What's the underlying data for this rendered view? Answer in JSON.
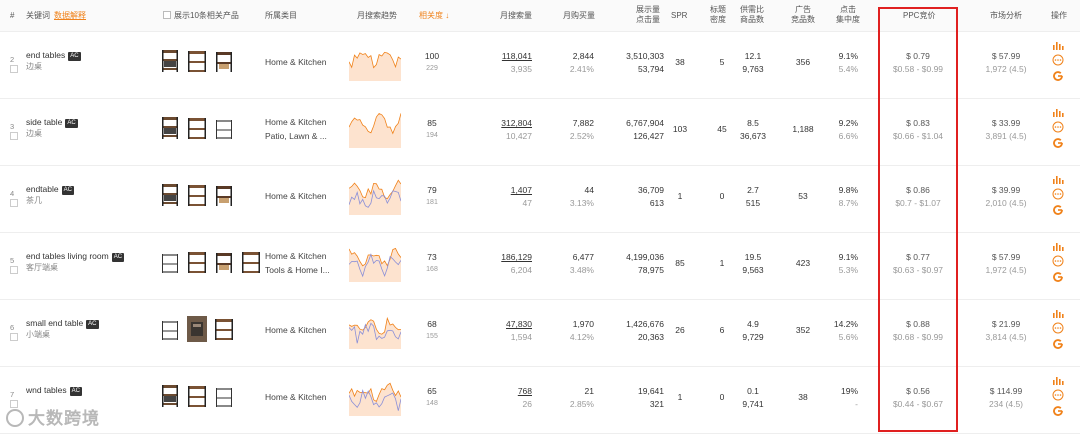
{
  "header": {
    "idx": "#",
    "keyword": "关键词",
    "keyword_link": "数据解释",
    "show_products": "展示10条相关产品",
    "category": "所属类目",
    "trend": "月搜索趋势",
    "relevance": "相关度",
    "monthly_search": "月搜索量",
    "monthly_buy": "月购买量",
    "impressions_1": "展示量",
    "impressions_2": "点击量",
    "spr": "SPR",
    "title_density_1": "标题",
    "title_density_2": "密度",
    "supply_demand_1": "供需比",
    "supply_demand_2": "商品数",
    "ads_1": "广告",
    "ads_2": "竞品数",
    "click_conc_1": "点击",
    "click_conc_2": "集中度",
    "ppc": "PPC竞价",
    "market": "市场分析",
    "ops": "操作"
  },
  "ac_label": "AC",
  "rows": [
    {
      "idx": "2",
      "keyword": "end tables",
      "keyword_cn": "边桌",
      "category": [
        "Home & Kitchen"
      ],
      "relevance": "100",
      "relevance_sub": "229",
      "search": "118,041",
      "search_sub": "3,935",
      "buy": "2,844",
      "buy_sub": "2.41%",
      "impressions": "3,510,303",
      "clicks": "53,794",
      "spr": "38",
      "title_density": "5",
      "supply_demand": "12.1",
      "products": "9,763",
      "ads": "356",
      "click_conc": "9.1%",
      "click_conc_sub": "5.4%",
      "ppc": "$ 0.79",
      "ppc_range": "$0.58 - $0.99",
      "price": "$ 57.99",
      "rating": "1,972 (4.5)"
    },
    {
      "idx": "3",
      "keyword": "side table",
      "keyword_cn": "边桌",
      "category": [
        "Home & Kitchen",
        "Patio, Lawn & ..."
      ],
      "relevance": "85",
      "relevance_sub": "194",
      "search": "312,804",
      "search_sub": "10,427",
      "buy": "7,882",
      "buy_sub": "2.52%",
      "impressions": "6,767,904",
      "clicks": "126,427",
      "spr": "103",
      "title_density": "45",
      "supply_demand": "8.5",
      "products": "36,673",
      "ads": "1,188",
      "click_conc": "9.2%",
      "click_conc_sub": "6.6%",
      "ppc": "$ 0.83",
      "ppc_range": "$0.66 - $1.04",
      "price": "$ 33.99",
      "rating": "3,891 (4.5)"
    },
    {
      "idx": "4",
      "keyword": "endtable",
      "keyword_cn": "茶几",
      "category": [
        "Home & Kitchen"
      ],
      "relevance": "79",
      "relevance_sub": "181",
      "search": "1,407",
      "search_sub": "47",
      "buy": "44",
      "buy_sub": "3.13%",
      "impressions": "36,709",
      "clicks": "613",
      "spr": "1",
      "title_density": "0",
      "supply_demand": "2.7",
      "products": "515",
      "ads": "53",
      "click_conc": "9.8%",
      "click_conc_sub": "8.7%",
      "ppc": "$ 0.86",
      "ppc_range": "$0.7 - $1.07",
      "price": "$ 39.99",
      "rating": "2,010 (4.5)"
    },
    {
      "idx": "5",
      "keyword": "end tables living room",
      "keyword_cn": "客厅端桌",
      "category": [
        "Home & Kitchen",
        "Tools & Home I..."
      ],
      "relevance": "73",
      "relevance_sub": "168",
      "search": "186,129",
      "search_sub": "6,204",
      "buy": "6,477",
      "buy_sub": "3.48%",
      "impressions": "4,199,036",
      "clicks": "78,975",
      "spr": "85",
      "title_density": "1",
      "supply_demand": "19.5",
      "products": "9,563",
      "ads": "423",
      "click_conc": "9.1%",
      "click_conc_sub": "5.3%",
      "ppc": "$ 0.77",
      "ppc_range": "$0.63 - $0.97",
      "price": "$ 57.99",
      "rating": "1,972 (4.5)"
    },
    {
      "idx": "6",
      "keyword": "small end table",
      "keyword_cn": "小端桌",
      "category": [
        "Home & Kitchen"
      ],
      "relevance": "68",
      "relevance_sub": "155",
      "search": "47,830",
      "search_sub": "1,594",
      "buy": "1,970",
      "buy_sub": "4.12%",
      "impressions": "1,426,676",
      "clicks": "20,363",
      "spr": "26",
      "title_density": "6",
      "supply_demand": "4.9",
      "products": "9,729",
      "ads": "352",
      "click_conc": "14.2%",
      "click_conc_sub": "5.6%",
      "ppc": "$ 0.88",
      "ppc_range": "$0.68 - $0.99",
      "price": "$ 21.99",
      "rating": "3,814 (4.5)"
    },
    {
      "idx": "7",
      "keyword": "wnd tables",
      "keyword_cn": "",
      "category": [
        "Home & Kitchen"
      ],
      "relevance": "65",
      "relevance_sub": "148",
      "search": "768",
      "search_sub": "26",
      "buy": "21",
      "buy_sub": "2.85%",
      "impressions": "19,641",
      "clicks": "321",
      "spr": "1",
      "title_density": "0",
      "supply_demand": "0.1",
      "products": "9,741",
      "ads": "38",
      "click_conc": "19%",
      "click_conc_sub": "-",
      "ppc": "$ 0.56",
      "ppc_range": "$0.44 - $0.67",
      "price": "$ 114.99",
      "rating": "234 (4.5)"
    }
  ],
  "watermark": "大数跨境",
  "colors": {
    "accent": "#f0821a",
    "highlight_box": "#e02020",
    "trend_fill": "#fde3cf",
    "trend_line": "#f0821a",
    "trend_line2": "#8a8fd8"
  },
  "icons": [
    "bar-chart-icon",
    "more-icon",
    "google-icon"
  ]
}
